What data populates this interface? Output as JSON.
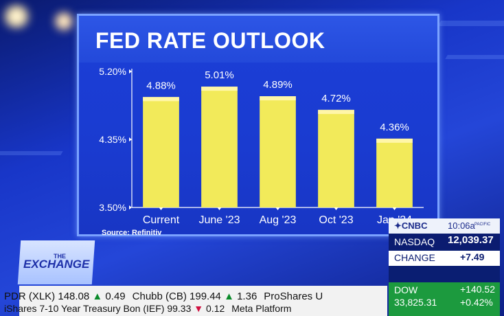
{
  "chart_data": {
    "type": "bar",
    "title": "FED RATE OUTLOOK",
    "categories": [
      "Current",
      "June '23",
      "Aug '23",
      "Oct '23",
      "Jan '24"
    ],
    "values": [
      4.88,
      5.01,
      4.89,
      4.72,
      4.36
    ],
    "data_labels": [
      "4.88%",
      "5.01%",
      "4.89%",
      "4.72%",
      "4.36%"
    ],
    "yticks": [
      {
        "value": 5.2,
        "label": "5.20%"
      },
      {
        "value": 4.35,
        "label": "4.35%"
      },
      {
        "value": 3.5,
        "label": "3.50%"
      }
    ],
    "ylim": [
      3.5,
      5.2
    ],
    "grid": false,
    "bar_color": "#f2ea5a",
    "source": "Source: Refinitiv"
  },
  "show": {
    "the": "THE",
    "exchange": "EXCHANGE"
  },
  "ticker": {
    "row1": [
      {
        "text": "PDR (XLK) 148.08",
        "arrow": "▲",
        "dir": "up",
        "chg": "0.49"
      },
      {
        "text": "Chubb (CB) 199.44",
        "arrow": "▲",
        "dir": "up",
        "chg": "1.36"
      },
      {
        "text": "ProShares U",
        "arrow": "",
        "dir": "",
        "chg": ""
      }
    ],
    "row2": [
      {
        "text": "iShares 7-10 Year Treasury Bon (IEF) 99.33",
        "arrow": "▼",
        "dir": "down",
        "chg": "0.12"
      },
      {
        "text": "Meta Platform",
        "arrow": "",
        "dir": "",
        "chg": ""
      }
    ]
  },
  "cnbc": {
    "logo": "CNBC",
    "time": "10:06a",
    "zone": "PACIFIC",
    "nasdaq_label": "NASDAQ",
    "nasdaq_value": "12,039.37",
    "change_label": "CHANGE",
    "change_value": "+7.49",
    "dow_label": "DOW",
    "dow_value": "33,825.31",
    "dow_change": "+140.52",
    "dow_pct": "+0.42%"
  }
}
